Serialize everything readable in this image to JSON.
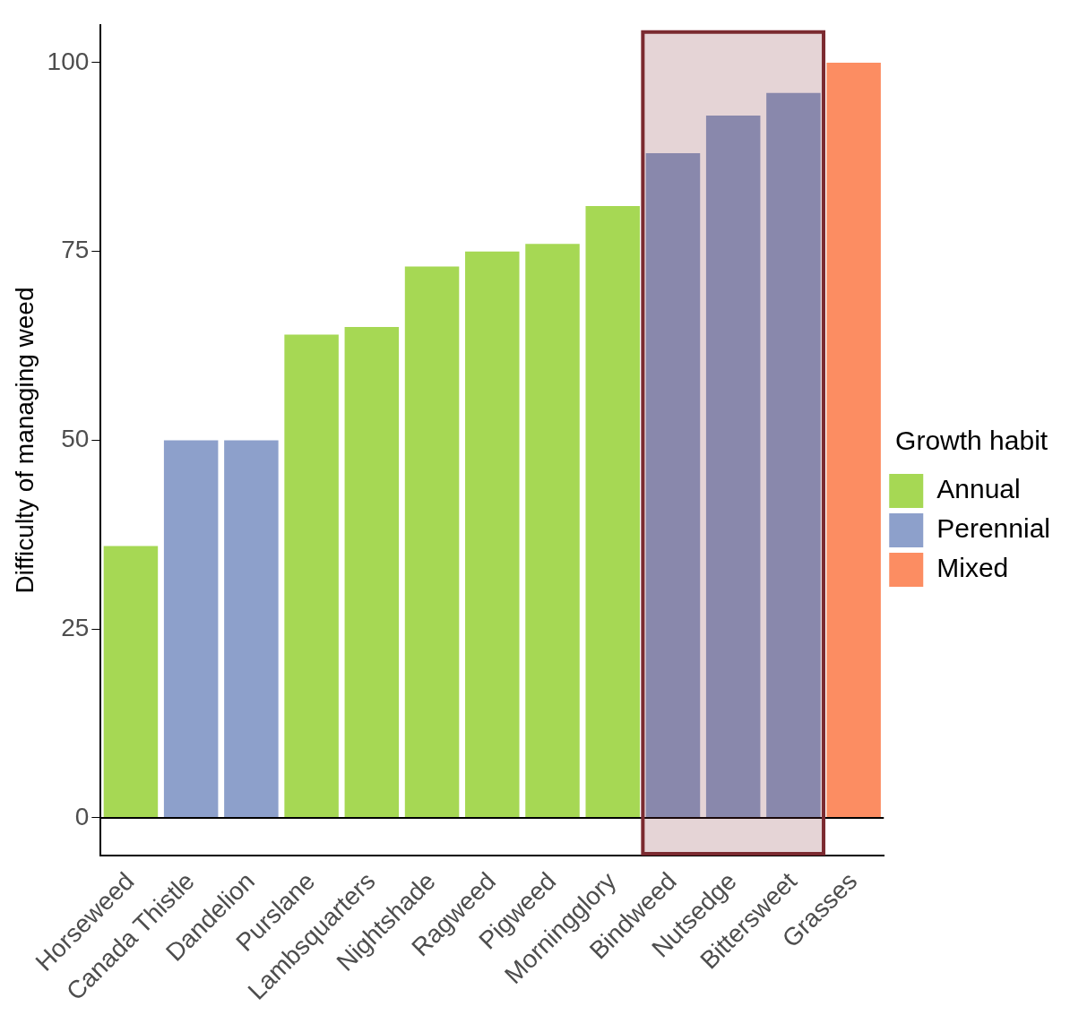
{
  "chart_data": {
    "type": "bar",
    "ylabel": "Difficulty of managing weed",
    "legend_title": "Growth habit",
    "legend": "right",
    "categories": [
      "Horseweed",
      "Canada Thistle",
      "Dandelion",
      "Purslane",
      "Lambsquarters",
      "Nightshade",
      "Ragweed",
      "Pigweed",
      "Morningglory",
      "Bindweed",
      "Nutsedge",
      "Bittersweet",
      "Grasses"
    ],
    "series": [
      {
        "name": "Annual",
        "color": "#a6d854",
        "values": [
          36,
          null,
          null,
          64,
          65,
          73,
          75,
          76,
          81,
          null,
          null,
          null,
          null
        ]
      },
      {
        "name": "Perennial",
        "color": "#8da0cb",
        "values": [
          null,
          50,
          50,
          null,
          null,
          null,
          null,
          null,
          null,
          88,
          93,
          96,
          null
        ]
      },
      {
        "name": "Mixed",
        "color": "#fc8d62",
        "values": [
          null,
          null,
          null,
          null,
          null,
          null,
          null,
          null,
          null,
          null,
          null,
          null,
          100
        ]
      }
    ],
    "ylim": [
      -5,
      105
    ],
    "yticks": [
      0,
      25,
      50,
      75,
      100
    ],
    "grid": false,
    "ref_lines": [
      {
        "axis": "y",
        "value": 0,
        "color": "#000000"
      }
    ],
    "bands": [
      {
        "axis": "x",
        "from": "Bindweed",
        "to": "Bittersweet",
        "color": "#7b2a30"
      }
    ]
  }
}
